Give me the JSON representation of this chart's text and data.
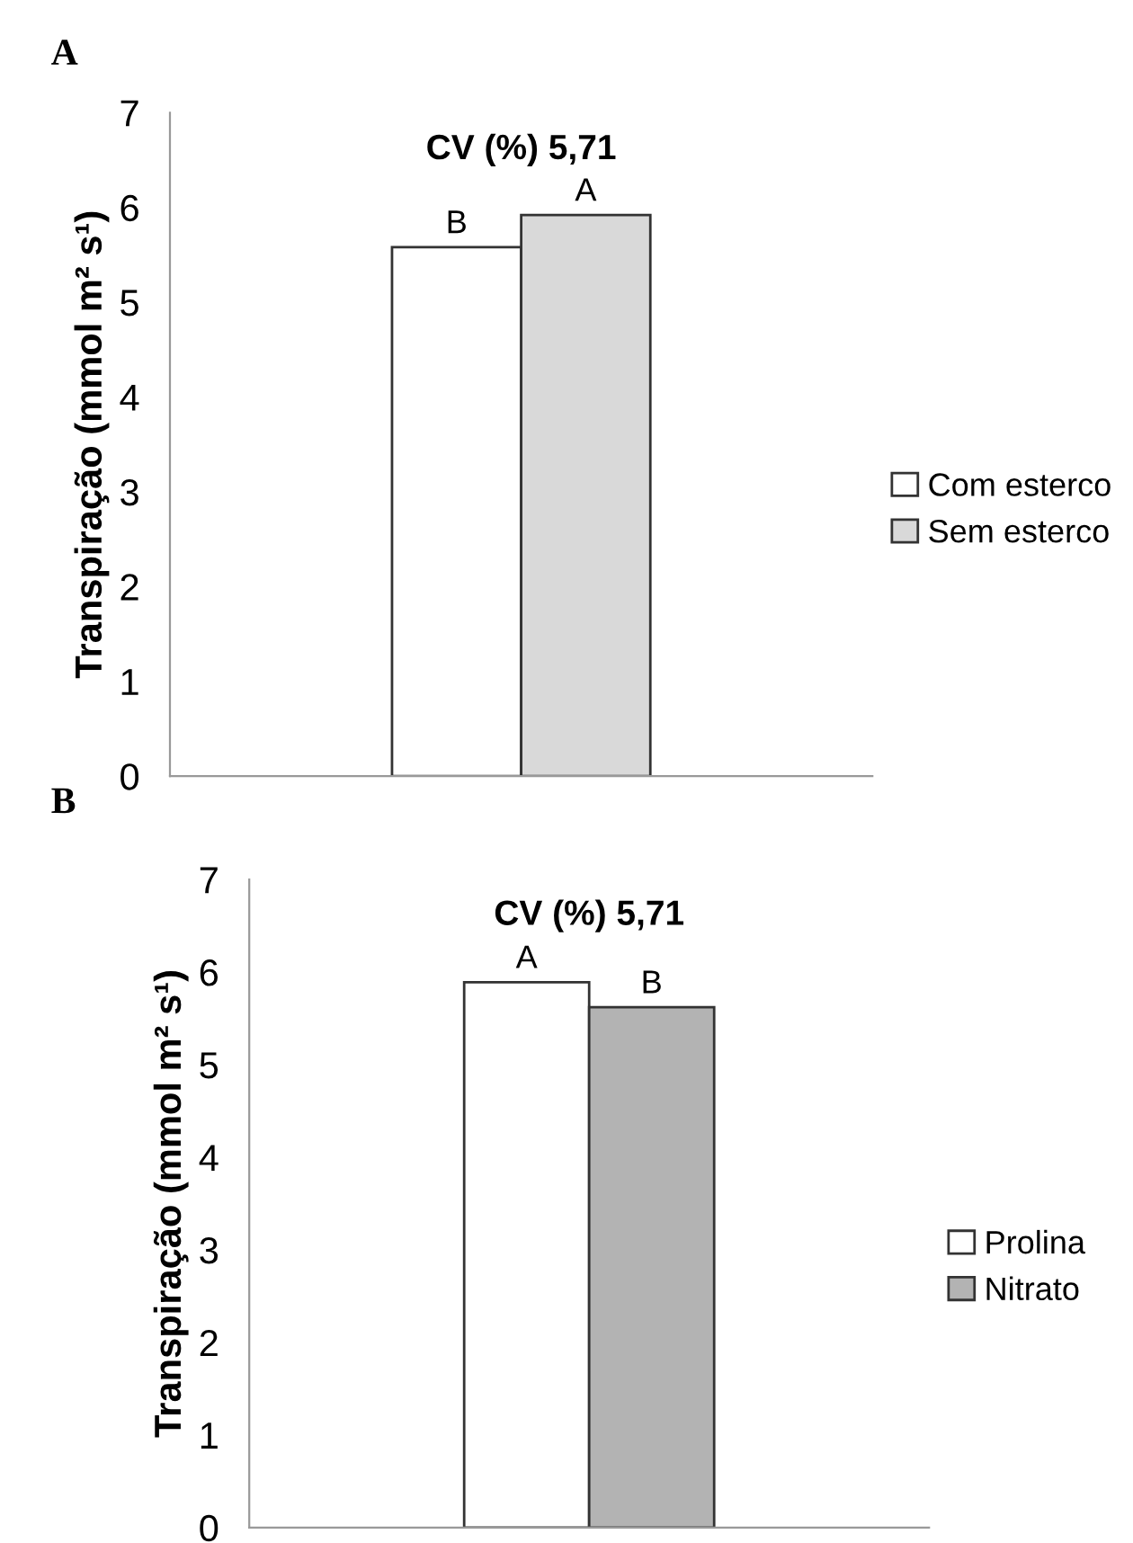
{
  "chart_data": [
    {
      "type": "bar",
      "title": "CV (%) 5,71",
      "ylabel": "Transpiração (mmol m² s¹)",
      "annotations": [
        "A"
      ],
      "categories": [
        null
      ],
      "ylim": [
        0,
        7
      ],
      "yticks": [
        0,
        1,
        2,
        3,
        4,
        5,
        6,
        7
      ],
      "legend": "right",
      "grid": false,
      "series": [
        {
          "name": "Com esterco",
          "color": "#ffffff",
          "values": [
            5.58
          ],
          "value_labels": [
            "B"
          ]
        },
        {
          "name": "Sem esterco",
          "color": "#d9d9d9",
          "values": [
            5.92
          ],
          "value_labels": [
            "A"
          ]
        }
      ]
    },
    {
      "type": "bar",
      "title": "CV (%) 5,71",
      "ylabel": "Transpiração (mmol m² s¹)",
      "annotations": [
        "B"
      ],
      "categories": [
        null
      ],
      "ylim": [
        0,
        7
      ],
      "yticks": [
        0,
        1,
        2,
        3,
        4,
        5,
        6,
        7
      ],
      "legend": "right",
      "grid": false,
      "series": [
        {
          "name": "Prolina",
          "color": "#ffffff",
          "values": [
            5.89
          ],
          "value_labels": [
            "A"
          ]
        },
        {
          "name": "Nitrato",
          "color": "#b3b3b3",
          "values": [
            5.62
          ],
          "value_labels": [
            "B"
          ]
        }
      ]
    }
  ]
}
